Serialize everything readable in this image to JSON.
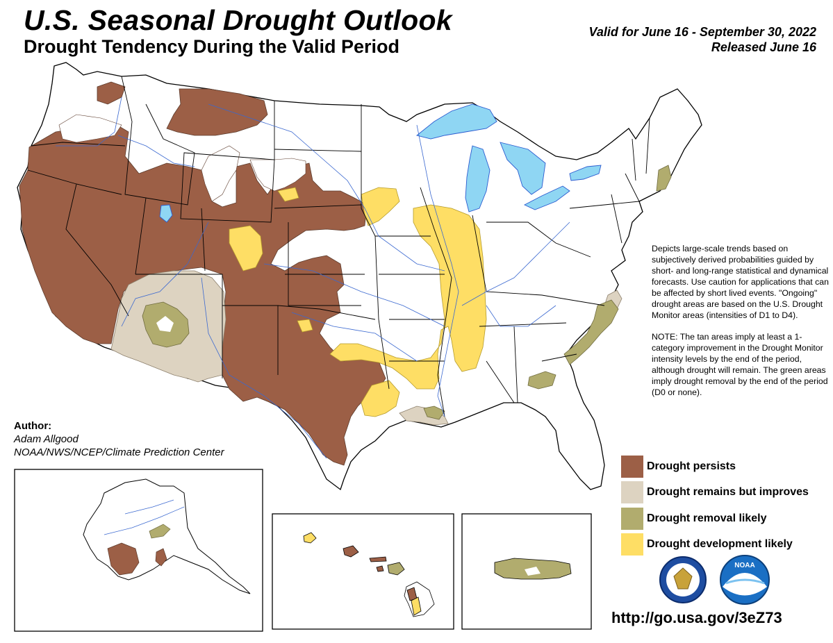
{
  "header": {
    "title": "U.S. Seasonal Drought Outlook",
    "subtitle": "Drought Tendency During the Valid Period",
    "valid_line1": "Valid for June 16 - September 30, 2022",
    "valid_line2": "Released June 16"
  },
  "description": {
    "para1": "Depicts large-scale trends based on subjectively derived probabilities guided by short- and long-range statistical and dynamical forecasts. Use caution for applications that can be affected by short lived events. \"Ongoing\" drought areas are based on the U.S. Drought Monitor areas (intensities of D1 to D4).",
    "para2": "NOTE: The tan areas imply at least a 1-category improvement in the Drought Monitor intensity levels by the end of the period, although drought will remain. The green areas imply drought removal by the end of the period (D0 or none)."
  },
  "author": {
    "heading": "Author:",
    "name": "Adam Allgood",
    "org": "NOAA/NWS/NCEP/Climate Prediction Center"
  },
  "legend": [
    {
      "label": "Drought persists",
      "color": "#9c5f46"
    },
    {
      "label": "Drought remains but improves",
      "color": "#ddd3c1"
    },
    {
      "label": "Drought removal likely",
      "color": "#b1ac6e"
    },
    {
      "label": "Drought development likely",
      "color": "#fede65"
    }
  ],
  "colors": {
    "persists": "#9c5f46",
    "improves": "#ddd3c1",
    "removal": "#b1ac6e",
    "development": "#fede65",
    "water": "#8fd6f3",
    "river": "#3a68d0"
  },
  "logos": {
    "commerce": "Department of Commerce seal",
    "noaa": "NOAA logo",
    "noaa_text": "NOAA"
  },
  "footer": {
    "url": "http://go.usa.gov/3eZ73"
  }
}
